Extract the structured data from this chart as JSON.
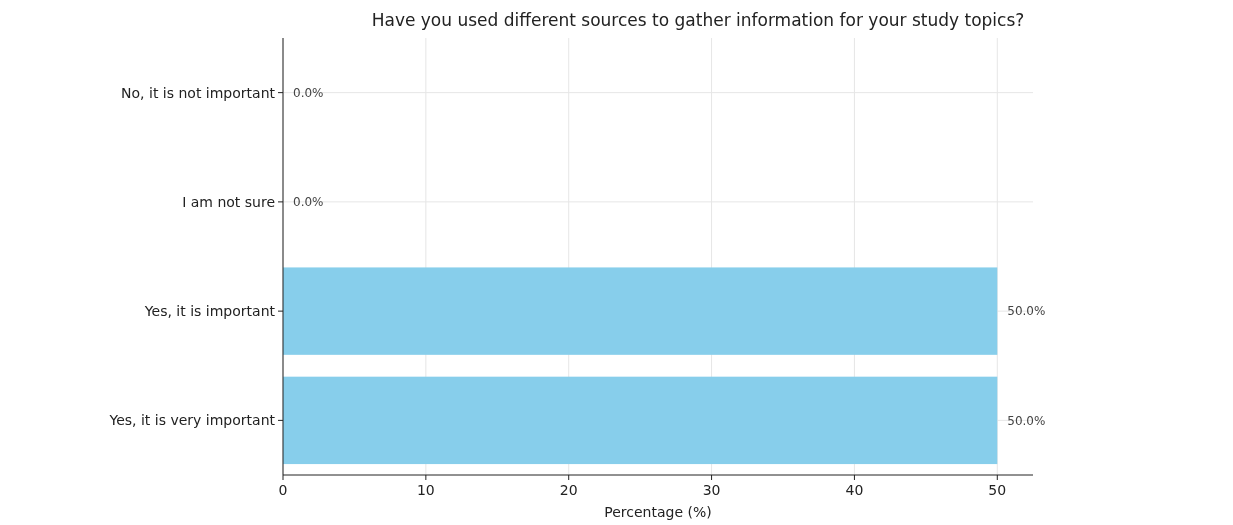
{
  "chart_data": {
    "type": "bar",
    "orientation": "horizontal",
    "title": "Have you used different sources to gather information for your study topics?",
    "xlabel": "Percentage (%)",
    "categories": [
      "No, it is not important",
      "I am not sure",
      "Yes, it is important",
      "Yes, it is very important"
    ],
    "values": [
      0,
      0,
      50,
      50
    ],
    "color": "#87ceeb",
    "value_labels": [
      "0.0%",
      "0.0%",
      "50.0%",
      "50.0%"
    ],
    "xlim": [
      0,
      52.5
    ],
    "xticks": [
      0,
      10,
      20,
      30,
      40,
      50
    ],
    "grid": true
  }
}
